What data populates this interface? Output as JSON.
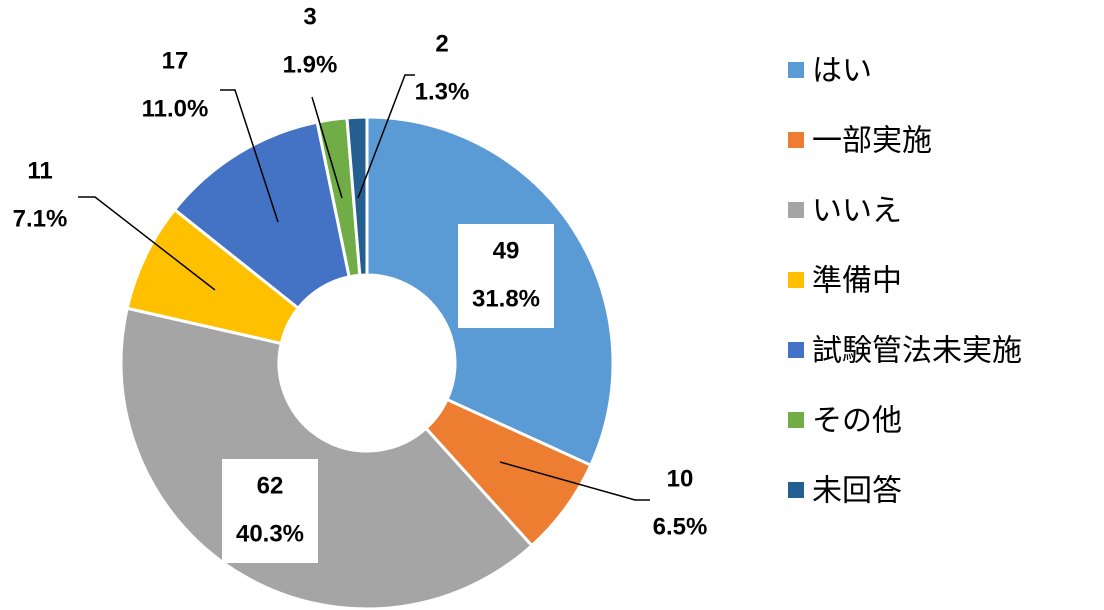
{
  "chart_data": {
    "type": "donut",
    "categories": [
      "はい",
      "一部実施",
      "いいえ",
      "準備中",
      "試験管法未実施",
      "その他",
      "未回答"
    ],
    "values": [
      49,
      10,
      62,
      11,
      17,
      3,
      2
    ],
    "percentage_labels": [
      "31.8%",
      "6.5%",
      "40.3%",
      "7.1%",
      "11.0%",
      "1.9%",
      "1.3%"
    ],
    "colors": [
      "#5b9bd5",
      "#ed7d31",
      "#a5a5a5",
      "#ffc000",
      "#4472c4",
      "#70ad47",
      "#255e91"
    ],
    "legend": "right"
  }
}
